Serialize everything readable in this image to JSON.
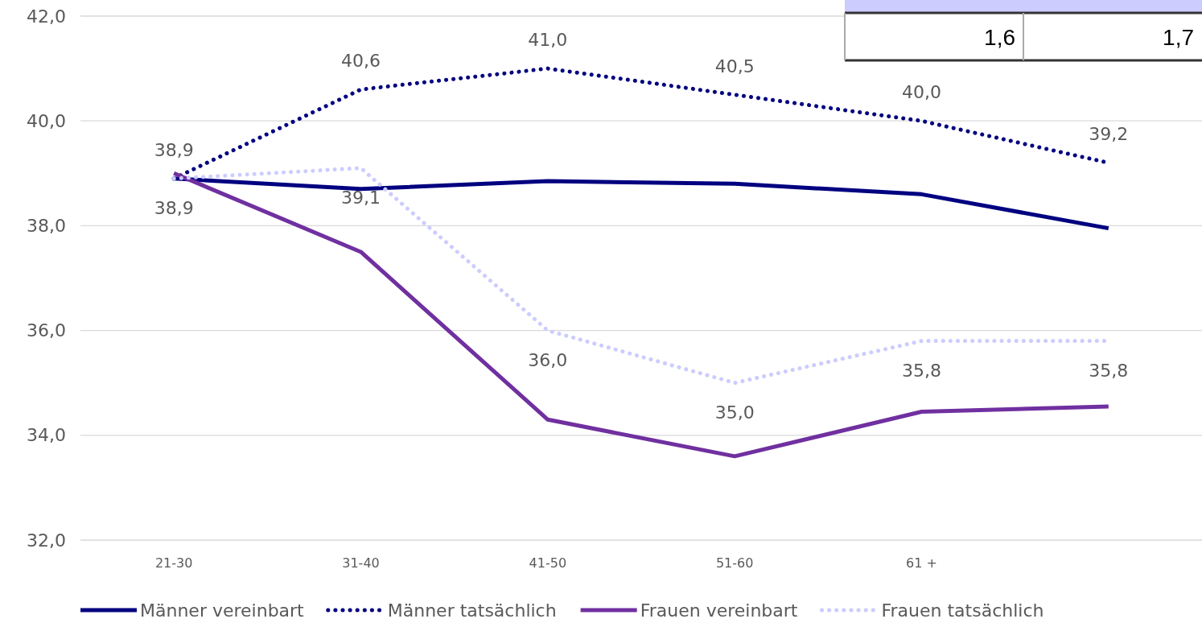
{
  "chart_data": {
    "type": "line",
    "categories": [
      "21-30",
      "31-40",
      "41-50",
      "51-60",
      "61 +",
      null
    ],
    "series": [
      {
        "name": "Männer vereinbart",
        "color": "#000080",
        "line_style": "solid",
        "values": [
          38.9,
          38.7,
          38.85,
          38.8,
          38.6,
          37.95
        ]
      },
      {
        "name": "Männer tatsächlich",
        "color": "#000080",
        "line_style": "dotted",
        "values": [
          38.9,
          40.6,
          41.0,
          40.5,
          40.0,
          39.2
        ],
        "value_labels": [
          "38,9",
          "40,6",
          "41,0",
          "40,5",
          "40,0",
          "39,2"
        ]
      },
      {
        "name": "Frauen vereinbart",
        "color": "#7030a0",
        "line_style": "solid",
        "values": [
          39.0,
          37.5,
          34.3,
          33.6,
          34.45,
          34.55
        ]
      },
      {
        "name": "Frauen tatsächlich",
        "color": "#ccccff",
        "line_style": "dotted",
        "values": [
          38.9,
          39.1,
          36.0,
          35.0,
          35.8,
          35.8
        ],
        "value_labels": [
          "38,9",
          "39,1",
          "36,0",
          "35,0",
          "35,8",
          "35,8"
        ]
      }
    ],
    "ylim": [
      32,
      42
    ],
    "yticks": [
      {
        "value": 32,
        "label": "32,0"
      },
      {
        "value": 34,
        "label": "34,0"
      },
      {
        "value": 36,
        "label": "36,0"
      },
      {
        "value": 38,
        "label": "38,0"
      },
      {
        "value": 40,
        "label": "40,0"
      },
      {
        "value": 42,
        "label": "42,0"
      }
    ],
    "grid": "y",
    "legend": "bottom",
    "marker": "none",
    "annotations": [
      "1,6",
      "1,7"
    ]
  }
}
